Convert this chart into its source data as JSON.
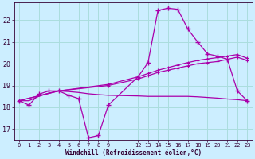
{
  "xlabel": "Windchill (Refroidissement éolien,°C)",
  "bg_color": "#cceeff",
  "grid_color": "#aadddd",
  "line_color": "#aa00aa",
  "xlim": [
    -0.5,
    23.5
  ],
  "ylim": [
    16.5,
    22.8
  ],
  "yticks": [
    17,
    18,
    19,
    20,
    21,
    22
  ],
  "xticks": [
    0,
    1,
    2,
    3,
    4,
    5,
    6,
    7,
    8,
    9,
    12,
    13,
    14,
    15,
    16,
    17,
    18,
    19,
    20,
    21,
    22,
    23
  ],
  "curve_x": [
    0,
    1,
    2,
    3,
    4,
    5,
    6,
    7,
    8,
    9,
    12,
    13,
    14,
    15,
    16,
    17,
    18,
    19,
    20,
    21,
    22,
    23
  ],
  "curve_y": [
    18.3,
    18.1,
    18.6,
    18.75,
    18.75,
    18.55,
    18.4,
    16.6,
    16.7,
    18.1,
    19.4,
    20.05,
    22.45,
    22.55,
    22.5,
    21.6,
    21.0,
    20.45,
    20.35,
    20.2,
    18.75,
    18.3
  ],
  "trend1_x": [
    0,
    4,
    9,
    12,
    13,
    14,
    15,
    16,
    17,
    18,
    19,
    20,
    21,
    22,
    23
  ],
  "trend1_y": [
    18.3,
    18.75,
    19.0,
    19.3,
    19.45,
    19.6,
    19.7,
    19.8,
    19.9,
    20.0,
    20.05,
    20.1,
    20.2,
    20.3,
    20.15
  ],
  "trend2_x": [
    0,
    4,
    9,
    12,
    13,
    14,
    15,
    16,
    17,
    18,
    19,
    20,
    21,
    22,
    23
  ],
  "trend2_y": [
    18.3,
    18.75,
    19.05,
    19.4,
    19.55,
    19.7,
    19.82,
    19.94,
    20.05,
    20.15,
    20.22,
    20.28,
    20.35,
    20.42,
    20.25
  ],
  "flat_x": [
    0,
    1,
    2,
    3,
    4,
    5,
    6,
    7,
    8,
    9,
    12,
    13,
    14,
    15,
    16,
    17,
    18,
    19,
    20,
    21,
    22,
    23
  ],
  "flat_y": [
    18.3,
    18.3,
    18.5,
    18.65,
    18.75,
    18.72,
    18.68,
    18.62,
    18.58,
    18.55,
    18.52,
    18.5,
    18.5,
    18.5,
    18.5,
    18.5,
    18.48,
    18.45,
    18.42,
    18.38,
    18.35,
    18.3
  ]
}
